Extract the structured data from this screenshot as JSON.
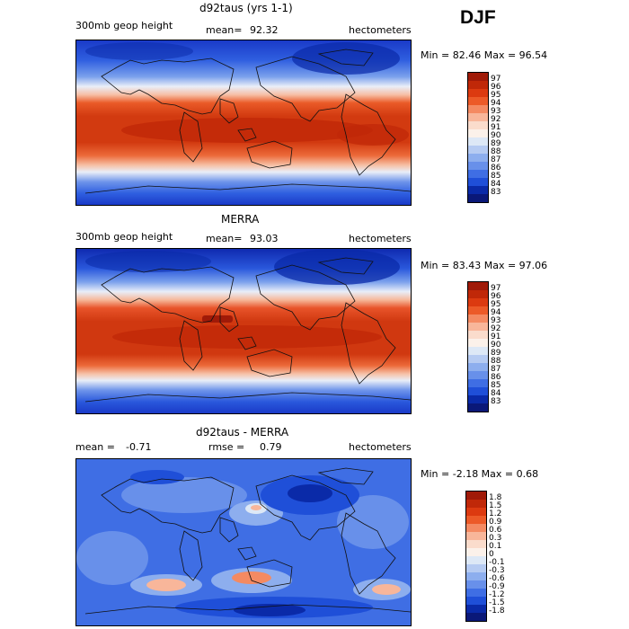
{
  "season": "DJF",
  "panels": [
    {
      "title": "d92taus (yrs 1-1)",
      "left_label": "300mb geop height",
      "mean_label": "mean=",
      "mean_value": "92.32",
      "units": "hectometers",
      "minmax": "Min =  82.46 Max =  96.54",
      "levels": [
        "97",
        "96",
        "95",
        "94",
        "93",
        "92",
        "91",
        "90",
        "89",
        "88",
        "87",
        "86",
        "85",
        "84",
        "83"
      ],
      "colors": [
        "#a01a08",
        "#c02808",
        "#dc3a10",
        "#ec5a28",
        "#f48a62",
        "#f8b69a",
        "#fadccc",
        "#fbf1ea",
        "#dde8f6",
        "#b6cbf2",
        "#8daeee",
        "#6890ea",
        "#3f6ee4",
        "#1f4fd8",
        "#0a2aa8",
        "#0a1878"
      ]
    },
    {
      "title": "MERRA",
      "left_label": "300mb geop height",
      "mean_label": "mean=",
      "mean_value": "93.03",
      "units": "hectometers",
      "minmax": "Min =  83.43 Max =  97.06",
      "levels": [
        "97",
        "96",
        "95",
        "94",
        "93",
        "92",
        "91",
        "90",
        "89",
        "88",
        "87",
        "86",
        "85",
        "84",
        "83"
      ],
      "colors": [
        "#a01a08",
        "#c02808",
        "#dc3a10",
        "#ec5a28",
        "#f48a62",
        "#f8b69a",
        "#fadccc",
        "#fbf1ea",
        "#dde8f6",
        "#b6cbf2",
        "#8daeee",
        "#6890ea",
        "#3f6ee4",
        "#1f4fd8",
        "#0a2aa8",
        "#0a1878"
      ]
    },
    {
      "title": "d92taus - MERRA",
      "left_label": "mean =",
      "mean_value": "-0.71",
      "rmse_label": "rmse =",
      "rmse_value": "0.79",
      "units": "hectometers",
      "minmax": "Min = -2.18 Max =   0.68",
      "levels": [
        "1.8",
        "1.5",
        "1.2",
        "0.9",
        "0.6",
        "0.3",
        "0.1",
        "0",
        "-0.1",
        "-0.3",
        "-0.6",
        "-0.9",
        "-1.2",
        "-1.5",
        "-1.8"
      ],
      "colors": [
        "#a01a08",
        "#c02808",
        "#dc3a10",
        "#ec5a28",
        "#f48a62",
        "#f8b69a",
        "#fadccc",
        "#fbf1ea",
        "#dde8f6",
        "#b6cbf2",
        "#8daeee",
        "#6890ea",
        "#3f6ee4",
        "#1f4fd8",
        "#0a2aa8",
        "#0a1878"
      ]
    }
  ]
}
